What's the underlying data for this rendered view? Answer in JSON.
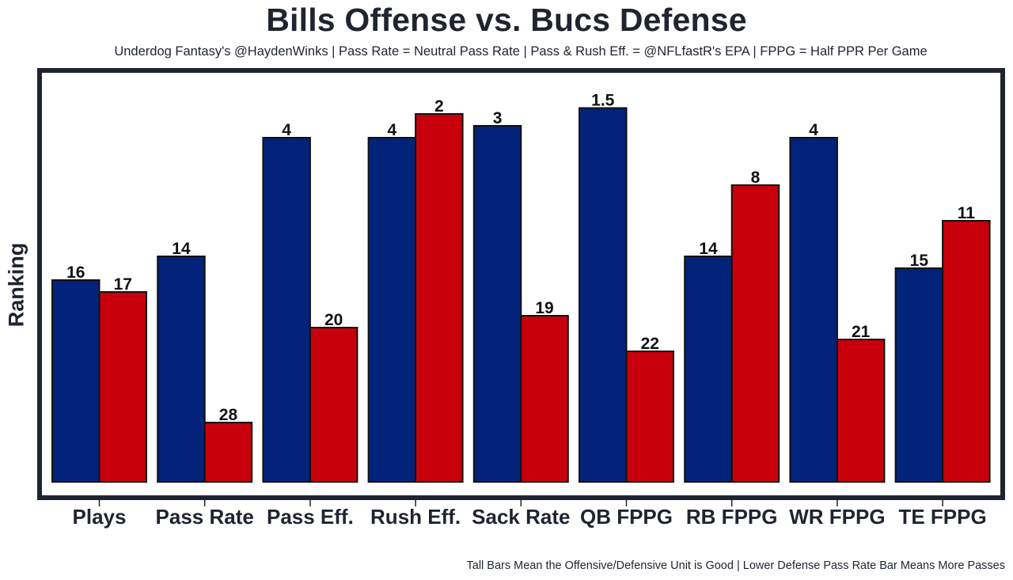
{
  "chart_data": {
    "type": "bar",
    "title": "Bills Offense vs. Bucs Defense",
    "subtitle": "Underdog Fantasy's @HaydenWinks | Pass Rate = Neutral Pass Rate | Pass & Rush Eff. = @NFLfastR's EPA | FPPG = Half PPR Per Game",
    "xlabel": "",
    "ylabel": "Ranking",
    "footnote": "Tall Bars Mean the Offensive/Defensive Unit is Good | Lower Defense Pass Rate Bar Means More Passes",
    "categories": [
      "Plays",
      "Pass Rate",
      "Pass Eff.",
      "Rush Eff.",
      "Sack Rate",
      "QB FPPG",
      "RB FPPG",
      "WR FPPG",
      "TE FPPG"
    ],
    "series": [
      {
        "name": "Bills Offense",
        "color": "#03237a",
        "values": [
          16,
          14,
          4,
          4,
          3,
          1.5,
          14,
          4,
          15
        ]
      },
      {
        "name": "Bucs Defense",
        "color": "#c8000b",
        "values": [
          17,
          28,
          20,
          2,
          19,
          22,
          8,
          21,
          11
        ]
      }
    ],
    "value_scale": "bar height = 33 - ranking (lower rank = taller bar)",
    "ylim": [
      33,
      0
    ],
    "y_ticks_shown": false,
    "grid": false,
    "legend": "none"
  }
}
